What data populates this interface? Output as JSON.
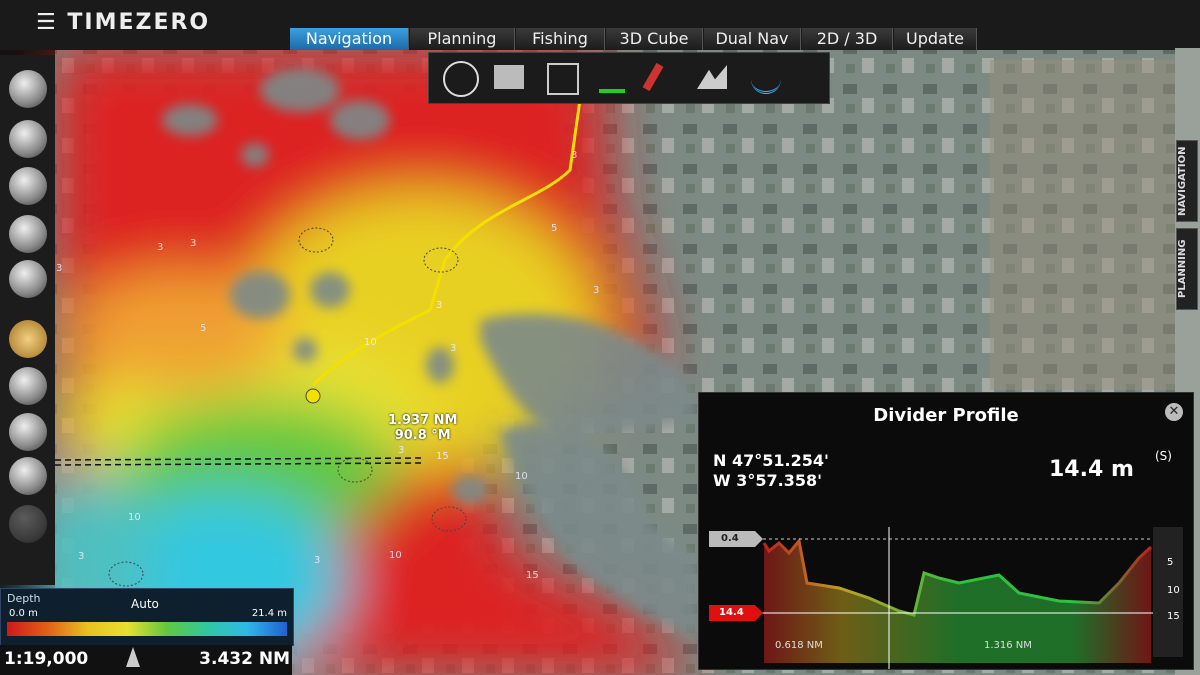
{
  "app": {
    "logo": "TIMEZERO"
  },
  "tabs": [
    "Navigation",
    "Planning",
    "Fishing",
    "3D Cube",
    "Dual Nav",
    "2D / 3D",
    "Update"
  ],
  "side_tabs": [
    "NAVIGATION",
    "PLANNING"
  ],
  "map": {
    "distance": "1.937 NM",
    "bearing": "90.8 °M",
    "soundings": [
      "3",
      "3",
      "5",
      "3",
      "10",
      "3",
      "3",
      "5",
      "10",
      "3",
      "3",
      "10",
      "15",
      "10",
      "15",
      "3",
      "3",
      "3"
    ]
  },
  "depth_bar": {
    "label": "Depth",
    "mode": "Auto",
    "min": "0.0 m",
    "max": "21.4 m"
  },
  "status": {
    "scale": "1:19,000",
    "range": "3.432 NM"
  },
  "divider_profile": {
    "title": "Divider Profile",
    "lat": "N 47°51.254'",
    "lon": "W 3°57.358'",
    "depth": "14.4 m",
    "unit_note": "(S)",
    "top_marker": "0.4",
    "depth_marker": "14.4",
    "axis_labels": [
      "5",
      "10",
      "15"
    ],
    "left_distance": "0.618 NM",
    "right_distance": "1.316 NM"
  }
}
